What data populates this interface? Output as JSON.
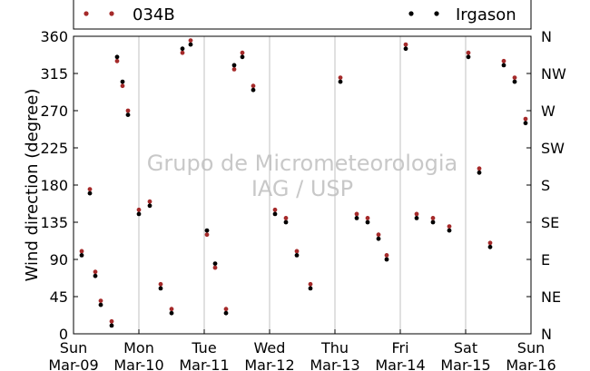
{
  "chart_data": {
    "type": "scatter",
    "ylabel": "Wind direction (degree)",
    "xlabel": "",
    "title": "",
    "ylim": [
      0,
      360
    ],
    "xlim": [
      "2014-03-09",
      "2014-03-16"
    ],
    "yticks": [
      0,
      45,
      90,
      135,
      180,
      225,
      270,
      315,
      360
    ],
    "xticks": [
      {
        "day": "Sun",
        "date": "Mar-09"
      },
      {
        "day": "Mon",
        "date": "Mar-10"
      },
      {
        "day": "Tue",
        "date": "Mar-11"
      },
      {
        "day": "Wed",
        "date": "Mar-12"
      },
      {
        "day": "Thu",
        "date": "Mar-13"
      },
      {
        "day": "Fri",
        "date": "Mar-14"
      },
      {
        "day": "Sat",
        "date": "Mar-15"
      },
      {
        "day": "Sun",
        "date": "Mar-16"
      }
    ],
    "right_ticks": [
      {
        "value": 0,
        "label": "N"
      },
      {
        "value": 45,
        "label": "NE"
      },
      {
        "value": 90,
        "label": "E"
      },
      {
        "value": 135,
        "label": "SE"
      },
      {
        "value": 180,
        "label": "S"
      },
      {
        "value": 225,
        "label": "SW"
      },
      {
        "value": 270,
        "label": "W"
      },
      {
        "value": 315,
        "label": "NW"
      },
      {
        "value": 360,
        "label": "N"
      }
    ],
    "grid": "vertical",
    "legend": "top, above plot",
    "watermark": [
      "Grupo de Micrometeorologia",
      "IAG / USP"
    ],
    "series": [
      {
        "name": "034B",
        "color": "#a52a2a",
        "marker": "circle",
        "x": [
          "2014-03-09T03:00",
          "2014-03-09T06:00",
          "2014-03-09T08:00",
          "2014-03-09T10:00",
          "2014-03-09T14:00",
          "2014-03-09T16:00",
          "2014-03-09T18:00",
          "2014-03-09T20:00",
          "2014-03-10T00:00",
          "2014-03-10T04:00",
          "2014-03-10T08:00",
          "2014-03-10T12:00",
          "2014-03-10T16:00",
          "2014-03-10T19:00",
          "2014-03-11T01:00",
          "2014-03-11T04:00",
          "2014-03-11T08:00",
          "2014-03-11T11:00",
          "2014-03-11T14:00",
          "2014-03-11T18:00",
          "2014-03-12T02:00",
          "2014-03-12T06:00",
          "2014-03-12T10:00",
          "2014-03-12T15:00",
          "2014-03-13T02:00",
          "2014-03-13T08:00",
          "2014-03-13T12:00",
          "2014-03-13T16:00",
          "2014-03-13T19:00",
          "2014-03-14T02:00",
          "2014-03-14T06:00",
          "2014-03-14T12:00",
          "2014-03-14T18:00",
          "2014-03-15T01:00",
          "2014-03-15T05:00",
          "2014-03-15T09:00",
          "2014-03-15T14:00",
          "2014-03-15T18:00",
          "2014-03-15T22:00"
        ],
        "y": [
          100,
          175,
          75,
          40,
          15,
          330,
          300,
          270,
          150,
          160,
          60,
          30,
          340,
          355,
          120,
          80,
          30,
          320,
          340,
          300,
          150,
          140,
          100,
          60,
          310,
          145,
          140,
          120,
          95,
          350,
          145,
          140,
          130,
          340,
          200,
          110,
          330,
          310,
          260
        ]
      },
      {
        "name": "Irgason",
        "color": "#000000",
        "marker": "circle",
        "x": [
          "2014-03-09T03:00",
          "2014-03-09T06:00",
          "2014-03-09T08:00",
          "2014-03-09T10:00",
          "2014-03-09T14:00",
          "2014-03-09T16:00",
          "2014-03-09T18:00",
          "2014-03-09T20:00",
          "2014-03-10T00:00",
          "2014-03-10T04:00",
          "2014-03-10T08:00",
          "2014-03-10T12:00",
          "2014-03-10T16:00",
          "2014-03-10T19:00",
          "2014-03-11T01:00",
          "2014-03-11T04:00",
          "2014-03-11T08:00",
          "2014-03-11T11:00",
          "2014-03-11T14:00",
          "2014-03-11T18:00",
          "2014-03-12T02:00",
          "2014-03-12T06:00",
          "2014-03-12T10:00",
          "2014-03-12T15:00",
          "2014-03-13T02:00",
          "2014-03-13T08:00",
          "2014-03-13T12:00",
          "2014-03-13T16:00",
          "2014-03-13T19:00",
          "2014-03-14T02:00",
          "2014-03-14T06:00",
          "2014-03-14T12:00",
          "2014-03-14T18:00",
          "2014-03-15T01:00",
          "2014-03-15T05:00",
          "2014-03-15T09:00",
          "2014-03-15T14:00",
          "2014-03-15T18:00",
          "2014-03-15T22:00"
        ],
        "y": [
          95,
          170,
          70,
          35,
          10,
          335,
          305,
          265,
          145,
          155,
          55,
          25,
          345,
          350,
          125,
          85,
          25,
          325,
          335,
          295,
          145,
          135,
          95,
          55,
          305,
          140,
          135,
          115,
          90,
          345,
          140,
          135,
          125,
          335,
          195,
          105,
          325,
          305,
          255
        ]
      }
    ]
  }
}
